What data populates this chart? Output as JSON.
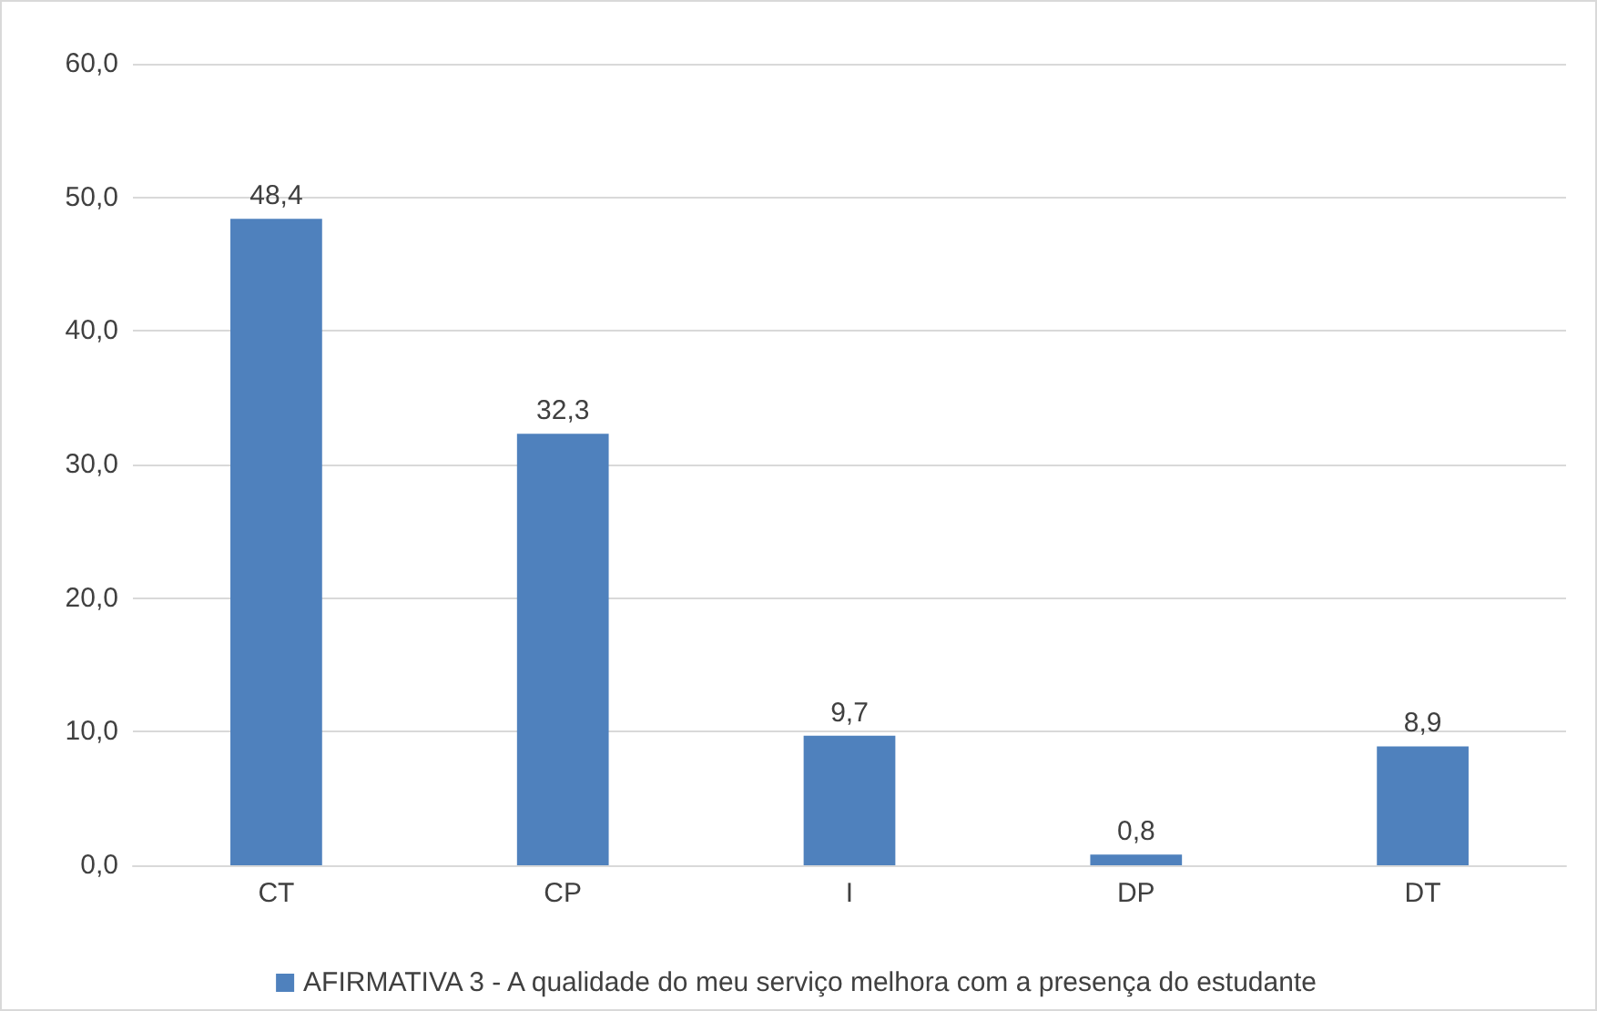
{
  "chart_data": {
    "type": "bar",
    "categories": [
      "CT",
      "CP",
      "I",
      "DP",
      "DT"
    ],
    "series": [
      {
        "name": "AFIRMATIVA 3 - A qualidade do meu serviço melhora com a presença do estudante",
        "color": "#4f81bd",
        "values": [
          48.4,
          32.3,
          9.7,
          0.8,
          8.9
        ],
        "value_labels": [
          "48,4",
          "32,3",
          "9,7",
          "0,8",
          "8,9"
        ]
      }
    ],
    "ylim": [
      0,
      60
    ],
    "yticks": [
      {
        "value": 0,
        "label": "0,0"
      },
      {
        "value": 10,
        "label": "10,0"
      },
      {
        "value": 20,
        "label": "20,0"
      },
      {
        "value": 30,
        "label": "30,0"
      },
      {
        "value": 40,
        "label": "40,0"
      },
      {
        "value": 50,
        "label": "50,0"
      },
      {
        "value": 60,
        "label": "60,0"
      }
    ],
    "grid": "y",
    "legend": "bottom"
  }
}
